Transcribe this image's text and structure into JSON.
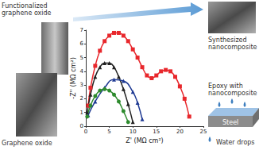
{
  "chart_data": {
    "type": "line",
    "x_label": "Z' (MΩ cm²)",
    "y_label": "-Z'' (MΩ cm²)",
    "xlim": [
      0,
      25
    ],
    "xticks": [
      0,
      5,
      10,
      15,
      20,
      25
    ],
    "ylim": [
      0,
      7
    ],
    "yticks": [
      0,
      1,
      2,
      3,
      4,
      5,
      6,
      7
    ],
    "grid": false,
    "annotations": [
      "Functionalized graphene oxide",
      "Graphene oxide",
      "Synthesized nanocomposite",
      "Epoxy with nanocomposite",
      "Steel",
      "Water drops"
    ],
    "series": [
      {
        "color": "#e8272c",
        "marker": "square",
        "x": [
          0.5,
          1,
          2,
          3,
          4,
          5,
          6,
          7,
          8,
          9,
          10,
          11,
          12,
          13,
          14,
          15,
          16,
          17,
          18,
          19,
          20,
          21,
          22
        ],
        "values": [
          1.5,
          2.8,
          4.4,
          5.5,
          6.2,
          6.6,
          6.8,
          6.8,
          6.6,
          6.2,
          5.6,
          5.0,
          4.3,
          3.7,
          3.5,
          3.7,
          4.0,
          4.1,
          4.0,
          3.6,
          2.9,
          2.0,
          0.7
        ]
      },
      {
        "color": "#222222",
        "marker": "triangle",
        "x": [
          0.3,
          1,
          2,
          3,
          4,
          5,
          6,
          7,
          8,
          9,
          10
        ],
        "values": [
          1.0,
          2.3,
          3.6,
          4.3,
          4.6,
          4.6,
          4.3,
          3.6,
          2.7,
          1.6,
          0.3
        ]
      },
      {
        "color": "#1f3a93",
        "marker": "triangle",
        "x": [
          0.5,
          2,
          4,
          6,
          8,
          10,
          11,
          12
        ],
        "values": [
          0.8,
          1.8,
          2.8,
          3.4,
          3.3,
          2.5,
          1.7,
          0.5
        ]
      },
      {
        "color": "#2e8b2e",
        "marker": "circle",
        "x": [
          0.3,
          1,
          2,
          3,
          4,
          5,
          6,
          7,
          8,
          9
        ],
        "values": [
          0.7,
          1.5,
          2.2,
          2.6,
          2.7,
          2.6,
          2.3,
          1.8,
          1.1,
          0.3
        ]
      }
    ]
  }
}
